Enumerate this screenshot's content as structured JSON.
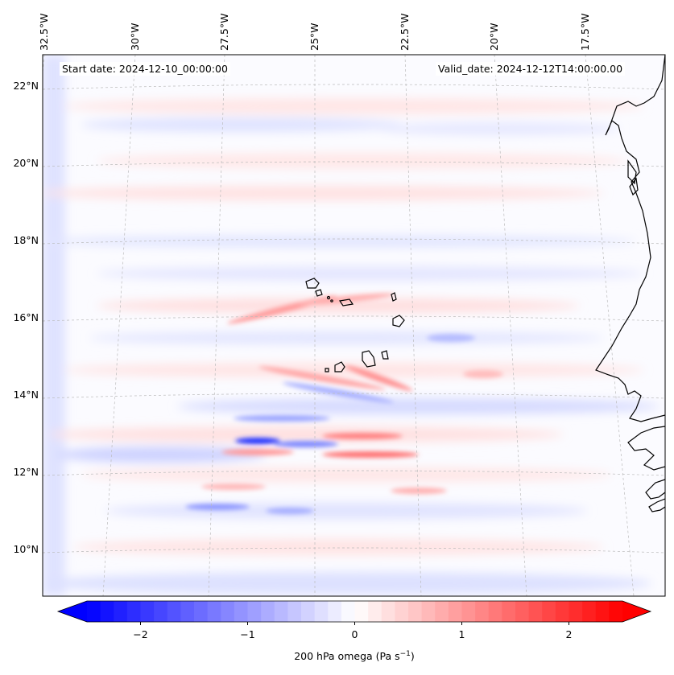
{
  "map": {
    "start_text": "Start date: 2024-12-10_00:00:00",
    "valid_text": "Valid_date: 2024-12-12T14:00:00.00",
    "lat_labels": [
      "22°N",
      "20°N",
      "18°N",
      "16°N",
      "14°N",
      "12°N",
      "10°N"
    ],
    "lon_labels": [
      "32.5°W",
      "30°W",
      "27.5°W",
      "25°W",
      "22.5°W",
      "20°W",
      "17.5°W"
    ],
    "lat_range": [
      8.8,
      22.8
    ],
    "lon_range": [
      -33.0,
      -15.8
    ],
    "projection": "lambert-like (slightly curved graticule)",
    "gridlines": true
  },
  "colorbar": {
    "ticks": [
      "−2",
      "−1",
      "0",
      "1",
      "2"
    ],
    "tick_values": [
      -2,
      -1,
      0,
      1,
      2
    ],
    "range": [
      -2.5,
      2.5
    ],
    "label": "200 hPa omega (Pa s",
    "label_exp": "−1",
    "label_end": ")",
    "colormap": "bwr",
    "extend": "both",
    "colors": {
      "low": "#0000ff",
      "mid": "#ffffff",
      "high": "#ff0000"
    }
  }
}
